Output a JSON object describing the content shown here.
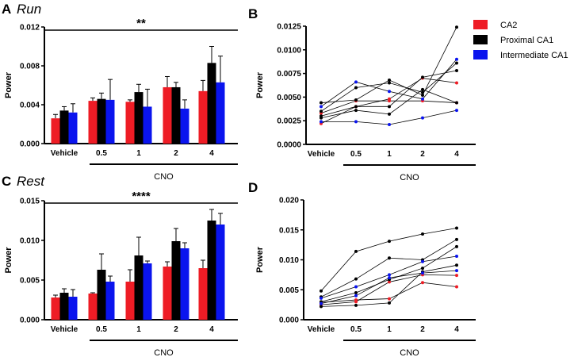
{
  "legend": [
    {
      "label": "CA2",
      "color": "#ee1c25"
    },
    {
      "label": "Proximal CA1",
      "color": "#000000"
    },
    {
      "label": "Intermediate CA1",
      "color": "#0a14ee"
    }
  ],
  "chart_data": [
    {
      "panel": "A",
      "title": "Run",
      "type": "bar",
      "categories": [
        "Vehicle",
        "0.5",
        "1",
        "2",
        "4"
      ],
      "group_label": "CNO",
      "ylabel": "Power",
      "ylim": [
        0,
        0.012
      ],
      "yticks": [
        "0.000",
        "0.004",
        "0.008",
        "0.012"
      ],
      "significance": "**",
      "series": [
        {
          "name": "CA2",
          "values": [
            0.0026,
            0.0044,
            0.0043,
            0.0058,
            0.0054
          ],
          "errors": [
            0.0004,
            0.0003,
            0.0002,
            0.0011,
            0.0011
          ]
        },
        {
          "name": "Proximal CA1",
          "values": [
            0.0034,
            0.0046,
            0.0053,
            0.0058,
            0.0083
          ],
          "errors": [
            0.0004,
            0.0006,
            0.0008,
            0.0005,
            0.0017
          ]
        },
        {
          "name": "Intermediate CA1",
          "values": [
            0.0032,
            0.0045,
            0.0038,
            0.0036,
            0.0063
          ],
          "errors": [
            0.0009,
            0.0021,
            0.0018,
            0.0009,
            0.0027
          ]
        }
      ]
    },
    {
      "panel": "B",
      "title": "",
      "type": "line",
      "categories": [
        "Vehicle",
        "0.5",
        "1",
        "2",
        "4"
      ],
      "group_label": "CNO",
      "ylabel": "Power",
      "ylim": [
        0,
        0.0125
      ],
      "yticks": [
        "0.0000",
        "0.0025",
        "0.0050",
        "0.0075",
        "0.0100",
        "0.0125"
      ],
      "series": [
        {
          "name": "CA2",
          "values": [
            0.0033,
            0.0046,
            0.0046,
            0.0046,
            0.0044
          ]
        },
        {
          "name": "CA2",
          "values": [
            0.0022,
            0.004,
            0.0048,
            0.007,
            0.0065
          ]
        },
        {
          "name": "Proximal CA1",
          "values": [
            0.0044,
            0.0047,
            0.0068,
            0.0052,
            0.0124
          ]
        },
        {
          "name": "Proximal CA1",
          "values": [
            0.003,
            0.004,
            0.004,
            0.0071,
            0.0078
          ]
        },
        {
          "name": "Proximal CA1",
          "values": [
            0.0035,
            0.006,
            0.0065,
            0.0055,
            0.0086
          ]
        },
        {
          "name": "Proximal CA1",
          "values": [
            0.0028,
            0.0036,
            0.0032,
            0.0058,
            0.0044
          ]
        },
        {
          "name": "Intermediate CA1",
          "values": [
            0.004,
            0.0066,
            0.0056,
            0.0048,
            0.009
          ]
        },
        {
          "name": "Intermediate CA1",
          "values": [
            0.0024,
            0.0024,
            0.0021,
            0.0028,
            0.0036
          ]
        }
      ]
    },
    {
      "panel": "C",
      "title": "Rest",
      "type": "bar",
      "categories": [
        "Vehicle",
        "0.5",
        "1",
        "2",
        "4"
      ],
      "group_label": "CNO",
      "ylabel": "Power",
      "ylim": [
        0,
        0.015
      ],
      "yticks": [
        "0.000",
        "0.005",
        "0.010",
        "0.015"
      ],
      "significance": "****",
      "series": [
        {
          "name": "CA2",
          "values": [
            0.0028,
            0.0033,
            0.0048,
            0.0067,
            0.0065
          ],
          "errors": [
            0.0003,
            0.0001,
            0.0015,
            0.0006,
            0.001
          ]
        },
        {
          "name": "Proximal CA1",
          "values": [
            0.0034,
            0.0063,
            0.0081,
            0.0099,
            0.0125
          ],
          "errors": [
            0.0005,
            0.002,
            0.0023,
            0.0016,
            0.0014
          ]
        },
        {
          "name": "Intermediate CA1",
          "values": [
            0.0029,
            0.0048,
            0.0071,
            0.009,
            0.012
          ],
          "errors": [
            0.0009,
            0.0007,
            0.0003,
            0.0007,
            0.0014
          ]
        }
      ]
    },
    {
      "panel": "D",
      "title": "",
      "type": "line",
      "categories": [
        "Vehicle",
        "0.5",
        "1",
        "2",
        "4"
      ],
      "group_label": "CNO",
      "ylabel": "Power",
      "ylim": [
        0,
        0.02
      ],
      "yticks": [
        "0.000",
        "0.005",
        "0.010",
        "0.015",
        "0.020"
      ],
      "series": [
        {
          "name": "CA2",
          "values": [
            0.0029,
            0.0033,
            0.0035,
            0.0062,
            0.0055
          ]
        },
        {
          "name": "CA2",
          "values": [
            0.0025,
            0.003,
            0.0063,
            0.0075,
            0.0074
          ]
        },
        {
          "name": "Proximal CA1",
          "values": [
            0.0048,
            0.0114,
            0.0131,
            0.0143,
            0.0153
          ]
        },
        {
          "name": "Proximal CA1",
          "values": [
            0.0038,
            0.0068,
            0.0103,
            0.01,
            0.0134
          ]
        },
        {
          "name": "Proximal CA1",
          "values": [
            0.003,
            0.0045,
            0.0067,
            0.0086,
            0.0122
          ]
        },
        {
          "name": "Proximal CA1",
          "values": [
            0.0022,
            0.0024,
            0.0028,
            0.008,
            0.0091
          ]
        },
        {
          "name": "Intermediate CA1",
          "values": [
            0.0036,
            0.0055,
            0.0075,
            0.0097,
            0.0106
          ]
        },
        {
          "name": "Intermediate CA1",
          "values": [
            0.0027,
            0.004,
            0.007,
            0.0078,
            0.0082
          ]
        }
      ]
    }
  ]
}
